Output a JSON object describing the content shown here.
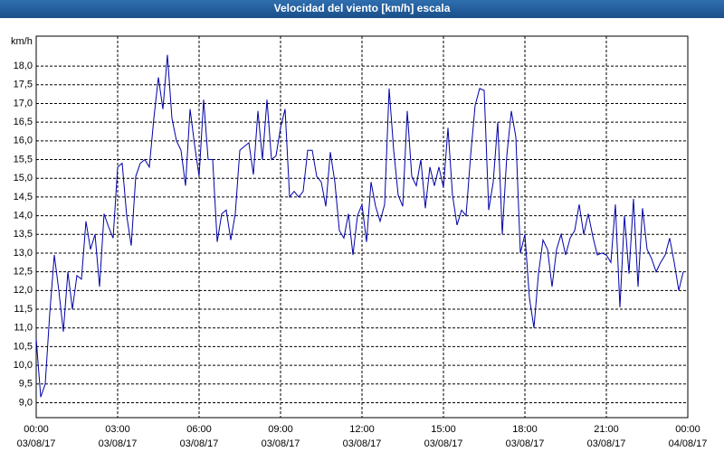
{
  "chart_data": {
    "type": "line",
    "title": "Velocidad del viento [km/h] escala",
    "y_unit": "km/h",
    "x": [
      0,
      0.167,
      0.333,
      0.5,
      0.667,
      0.833,
      1,
      1.167,
      1.333,
      1.5,
      1.667,
      1.833,
      2,
      2.167,
      2.333,
      2.5,
      2.667,
      2.833,
      3,
      3.167,
      3.333,
      3.5,
      3.667,
      3.833,
      4,
      4.167,
      4.333,
      4.5,
      4.667,
      4.833,
      5,
      5.167,
      5.333,
      5.5,
      5.667,
      5.833,
      6,
      6.167,
      6.333,
      6.5,
      6.667,
      6.833,
      7,
      7.167,
      7.333,
      7.5,
      7.667,
      7.833,
      8,
      8.167,
      8.333,
      8.5,
      8.667,
      8.833,
      9,
      9.167,
      9.333,
      9.5,
      9.667,
      9.833,
      10,
      10.167,
      10.333,
      10.5,
      10.667,
      10.833,
      11,
      11.167,
      11.333,
      11.5,
      11.667,
      11.833,
      12,
      12.167,
      12.333,
      12.5,
      12.667,
      12.833,
      13,
      13.167,
      13.333,
      13.5,
      13.667,
      13.833,
      14,
      14.167,
      14.333,
      14.5,
      14.667,
      14.833,
      15,
      15.167,
      15.333,
      15.5,
      15.667,
      15.833,
      16,
      16.167,
      16.333,
      16.5,
      16.667,
      16.833,
      17,
      17.167,
      17.333,
      17.5,
      17.667,
      17.833,
      18,
      18.167,
      18.333,
      18.5,
      18.667,
      18.833,
      19,
      19.167,
      19.333,
      19.5,
      19.667,
      19.833,
      20,
      20.167,
      20.333,
      20.5,
      20.667,
      20.833,
      21,
      21.167,
      21.333,
      21.5,
      21.667,
      21.833,
      22,
      22.167,
      22.333,
      22.5,
      22.667,
      22.833,
      23,
      23.167,
      23.333,
      23.5,
      23.667,
      23.833
    ],
    "series": [
      {
        "color": "#0000a8",
        "values": [
          10.71,
          9.15,
          9.5,
          11.4,
          12.95,
          12.0,
          10.9,
          12.5,
          11.5,
          12.4,
          12.3,
          13.85,
          13.1,
          13.5,
          12.1,
          14.05,
          13.7,
          13.4,
          15.3,
          15.4,
          14.0,
          13.2,
          15.05,
          15.4,
          15.5,
          15.3,
          16.6,
          17.7,
          16.85,
          18.3,
          16.6,
          16.0,
          15.75,
          14.8,
          16.85,
          15.9,
          15.05,
          17.1,
          15.5,
          15.5,
          13.3,
          14.05,
          14.15,
          13.35,
          14.05,
          15.75,
          15.85,
          15.95,
          15.1,
          16.8,
          15.5,
          17.1,
          15.5,
          15.6,
          16.35,
          16.85,
          14.5,
          14.65,
          14.5,
          14.65,
          15.75,
          15.75,
          15.05,
          14.9,
          14.25,
          15.7,
          14.9,
          13.6,
          13.4,
          14.05,
          12.95,
          14.0,
          14.3,
          13.3,
          14.9,
          14.25,
          13.85,
          14.3,
          17.4,
          15.75,
          14.55,
          14.25,
          16.8,
          15.05,
          14.8,
          15.5,
          14.2,
          15.3,
          14.8,
          15.3,
          14.75,
          16.35,
          14.55,
          13.75,
          14.15,
          14.0,
          15.6,
          16.95,
          17.4,
          17.35,
          14.15,
          14.9,
          16.5,
          13.5,
          15.6,
          16.8,
          16.1,
          13.0,
          13.5,
          11.8,
          11.0,
          12.45,
          13.35,
          13.1,
          12.1,
          13.1,
          13.5,
          12.95,
          13.4,
          13.6,
          14.3,
          13.5,
          14.05,
          13.45,
          12.95,
          13.0,
          12.95,
          12.75,
          14.3,
          11.55,
          14.0,
          12.45,
          14.45,
          12.1,
          14.2,
          13.1,
          12.85,
          12.5,
          12.75,
          12.95,
          13.4,
          12.75,
          12.0,
          12.5
        ]
      }
    ],
    "xlim": [
      0,
      24
    ],
    "xticks": [
      {
        "value": 0,
        "label": "00:00"
      },
      {
        "value": 3,
        "label": "03:00"
      },
      {
        "value": 6,
        "label": "06:00"
      },
      {
        "value": 9,
        "label": "09:00"
      },
      {
        "value": 12,
        "label": "12:00"
      },
      {
        "value": 15,
        "label": "15:00"
      },
      {
        "value": 18,
        "label": "18:00"
      },
      {
        "value": 21,
        "label": "21:00"
      },
      {
        "value": 24,
        "label": "00:00"
      }
    ],
    "xtick_dates": [
      "03/08/17",
      "03/08/17",
      "03/08/17",
      "03/08/17",
      "03/08/17",
      "03/08/17",
      "03/08/17",
      "03/08/17",
      "04/08/17"
    ],
    "ylim": [
      8.6,
      18.8
    ],
    "yticks": [
      {
        "value": 9,
        "label": "9,0"
      },
      {
        "value": 9.5,
        "label": "9,5"
      },
      {
        "value": 10,
        "label": "10,0"
      },
      {
        "value": 10.5,
        "label": "10,5"
      },
      {
        "value": 11,
        "label": "11,0"
      },
      {
        "value": 11.5,
        "label": "11,5"
      },
      {
        "value": 12,
        "label": "12,0"
      },
      {
        "value": 12.5,
        "label": "12,5"
      },
      {
        "value": 13,
        "label": "13,0"
      },
      {
        "value": 13.5,
        "label": "13,5"
      },
      {
        "value": 14,
        "label": "14,0"
      },
      {
        "value": 14.5,
        "label": "14,5"
      },
      {
        "value": 15,
        "label": "15,0"
      },
      {
        "value": 15.5,
        "label": "15,5"
      },
      {
        "value": 16,
        "label": "16,0"
      },
      {
        "value": 16.5,
        "label": "16,5"
      },
      {
        "value": 17,
        "label": "17,0"
      },
      {
        "value": 17.5,
        "label": "17,5"
      },
      {
        "value": 18,
        "label": "18,0"
      }
    ],
    "grid": true
  }
}
